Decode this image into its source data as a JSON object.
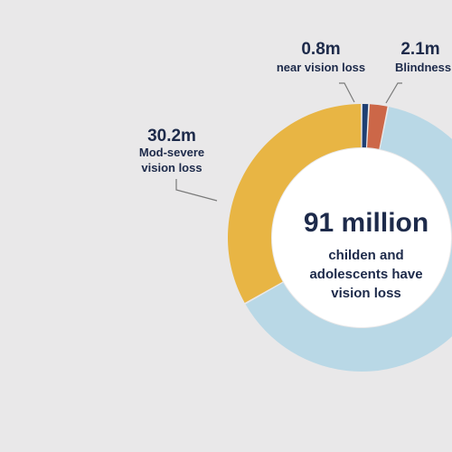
{
  "chart_data": {
    "type": "pie",
    "center_title": "91 million",
    "center_subtitle": "childen and\nadolescents have\nvision loss",
    "segments": [
      {
        "label": "near vision loss",
        "value_label": "0.8m",
        "value": 0.8,
        "color": "#1f3f73"
      },
      {
        "label": "Blindness",
        "value_label": "2.1m",
        "value": 2.1,
        "color": "#cc6748"
      },
      {
        "label": "",
        "value_label": "",
        "value": 57.9,
        "color": "#b9d8e6"
      },
      {
        "label": "Mod-severe vision loss",
        "value_label": "30.2m",
        "value": 30.2,
        "color": "#e8b544"
      }
    ]
  },
  "callouts": {
    "near": {
      "value": "0.8m",
      "label": "near vision loss"
    },
    "blind": {
      "value": "2.1m",
      "label": "Blindness"
    },
    "modsevere": {
      "value": "30.2m",
      "label": "Mod-severe\nvision loss"
    }
  }
}
